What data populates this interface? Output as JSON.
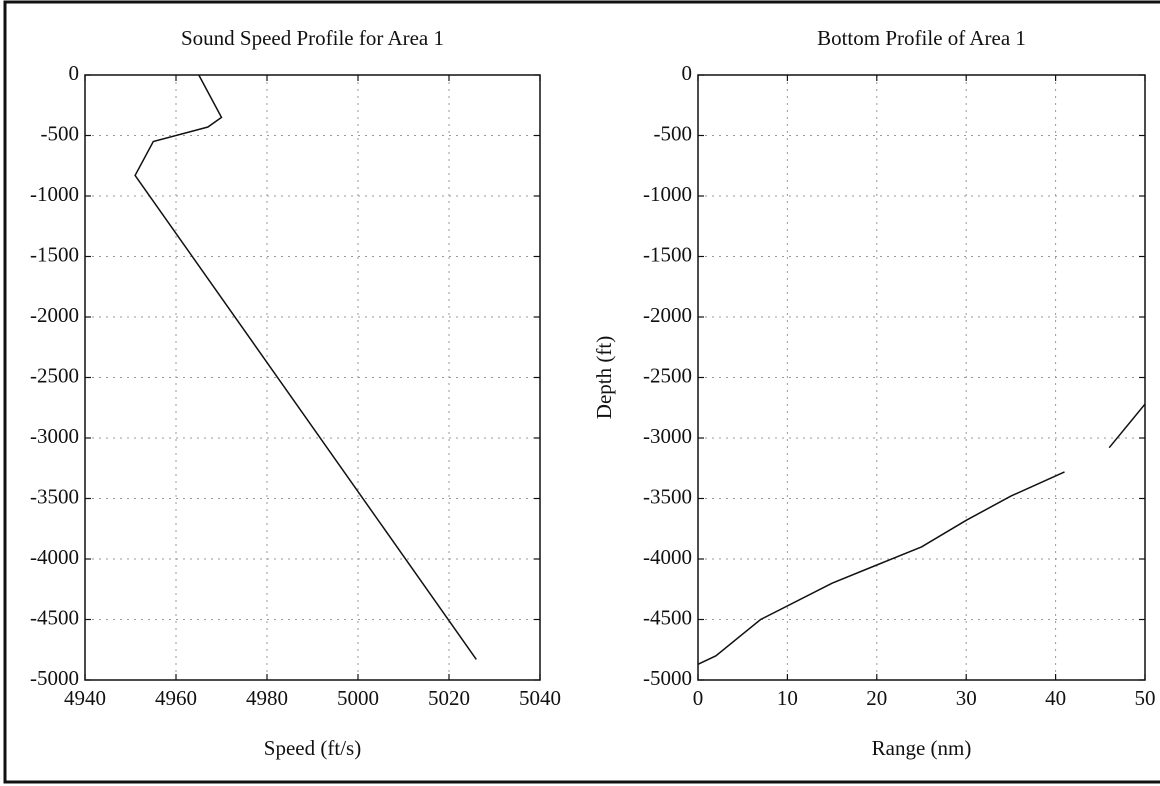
{
  "chart_data": [
    {
      "type": "line",
      "title": "Sound Speed Profile for Area 1",
      "xlabel": "Speed (ft/s)",
      "x": [
        4965,
        4970,
        4967,
        4955,
        4951,
        5026
      ],
      "values": [
        0,
        -350,
        -430,
        -550,
        -830,
        -4830
      ],
      "color": "#111111",
      "xlim": [
        4940,
        5040
      ],
      "xticks": [
        4940,
        4960,
        4980,
        5000,
        5020,
        5040
      ],
      "ylim": [
        -5000,
        0
      ],
      "yticks": [
        0,
        -500,
        -1000,
        -1500,
        -2000,
        -2500,
        -3000,
        -3500,
        -4000,
        -4500,
        -5000
      ],
      "grid": true
    },
    {
      "type": "line",
      "title": "Bottom Profile of Area 1",
      "xlabel": "Range (nm)",
      "ylabel": "Depth (ft)",
      "x": [
        0,
        2,
        7,
        15,
        20,
        25,
        30,
        35,
        41,
        null,
        46,
        50
      ],
      "values": [
        -4870,
        -4800,
        -4500,
        -4200,
        -4050,
        -3900,
        -3680,
        -3480,
        -3280,
        null,
        -3080,
        -2720
      ],
      "color": "#111111",
      "xlim": [
        0,
        50
      ],
      "xticks": [
        0,
        10,
        20,
        30,
        40,
        50
      ],
      "ylim": [
        -5000,
        0
      ],
      "yticks": [
        0,
        -500,
        -1000,
        -1500,
        -2000,
        -2500,
        -3000,
        -3500,
        -4000,
        -4500,
        -5000
      ],
      "grid": true
    }
  ]
}
